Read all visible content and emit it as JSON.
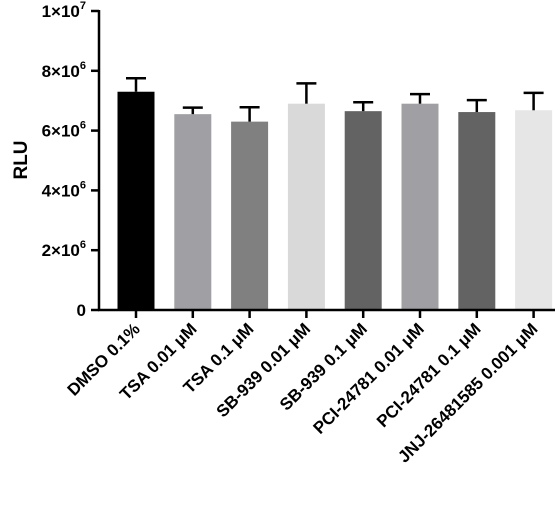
{
  "chart_data": {
    "type": "bar",
    "title": "",
    "xlabel": "",
    "ylabel": "RLU",
    "ylim": [
      0,
      10000000
    ],
    "yticks": [
      {
        "value": 0,
        "base": "0",
        "exp": ""
      },
      {
        "value": 2000000,
        "base": "2×10",
        "exp": "6"
      },
      {
        "value": 4000000,
        "base": "4×10",
        "exp": "6"
      },
      {
        "value": 6000000,
        "base": "6×10",
        "exp": "6"
      },
      {
        "value": 8000000,
        "base": "8×10",
        "exp": "6"
      },
      {
        "value": 10000000,
        "base": "1×10",
        "exp": "7"
      }
    ],
    "categories": [
      "DMSO 0.1%",
      "TSA 0.01 μM",
      "TSA 0.1 μM",
      "SB-939 0.01 μM",
      "SB-939 0.1 μM",
      "PCI-24781 0.01 μM",
      "PCI-24781 0.1 μM",
      "JNJ-26481585 0.001 μM"
    ],
    "values": [
      7300000,
      6550000,
      6300000,
      6900000,
      6650000,
      6900000,
      6620000,
      6680000
    ],
    "errors": [
      450000,
      220000,
      480000,
      680000,
      300000,
      320000,
      400000,
      580000
    ],
    "colors": [
      "#000000",
      "#a0a0a4",
      "#808080",
      "#d9d9d9",
      "#636363",
      "#a0a0a4",
      "#636363",
      "#e6e6e6"
    ],
    "grid": false,
    "legend": "none"
  }
}
